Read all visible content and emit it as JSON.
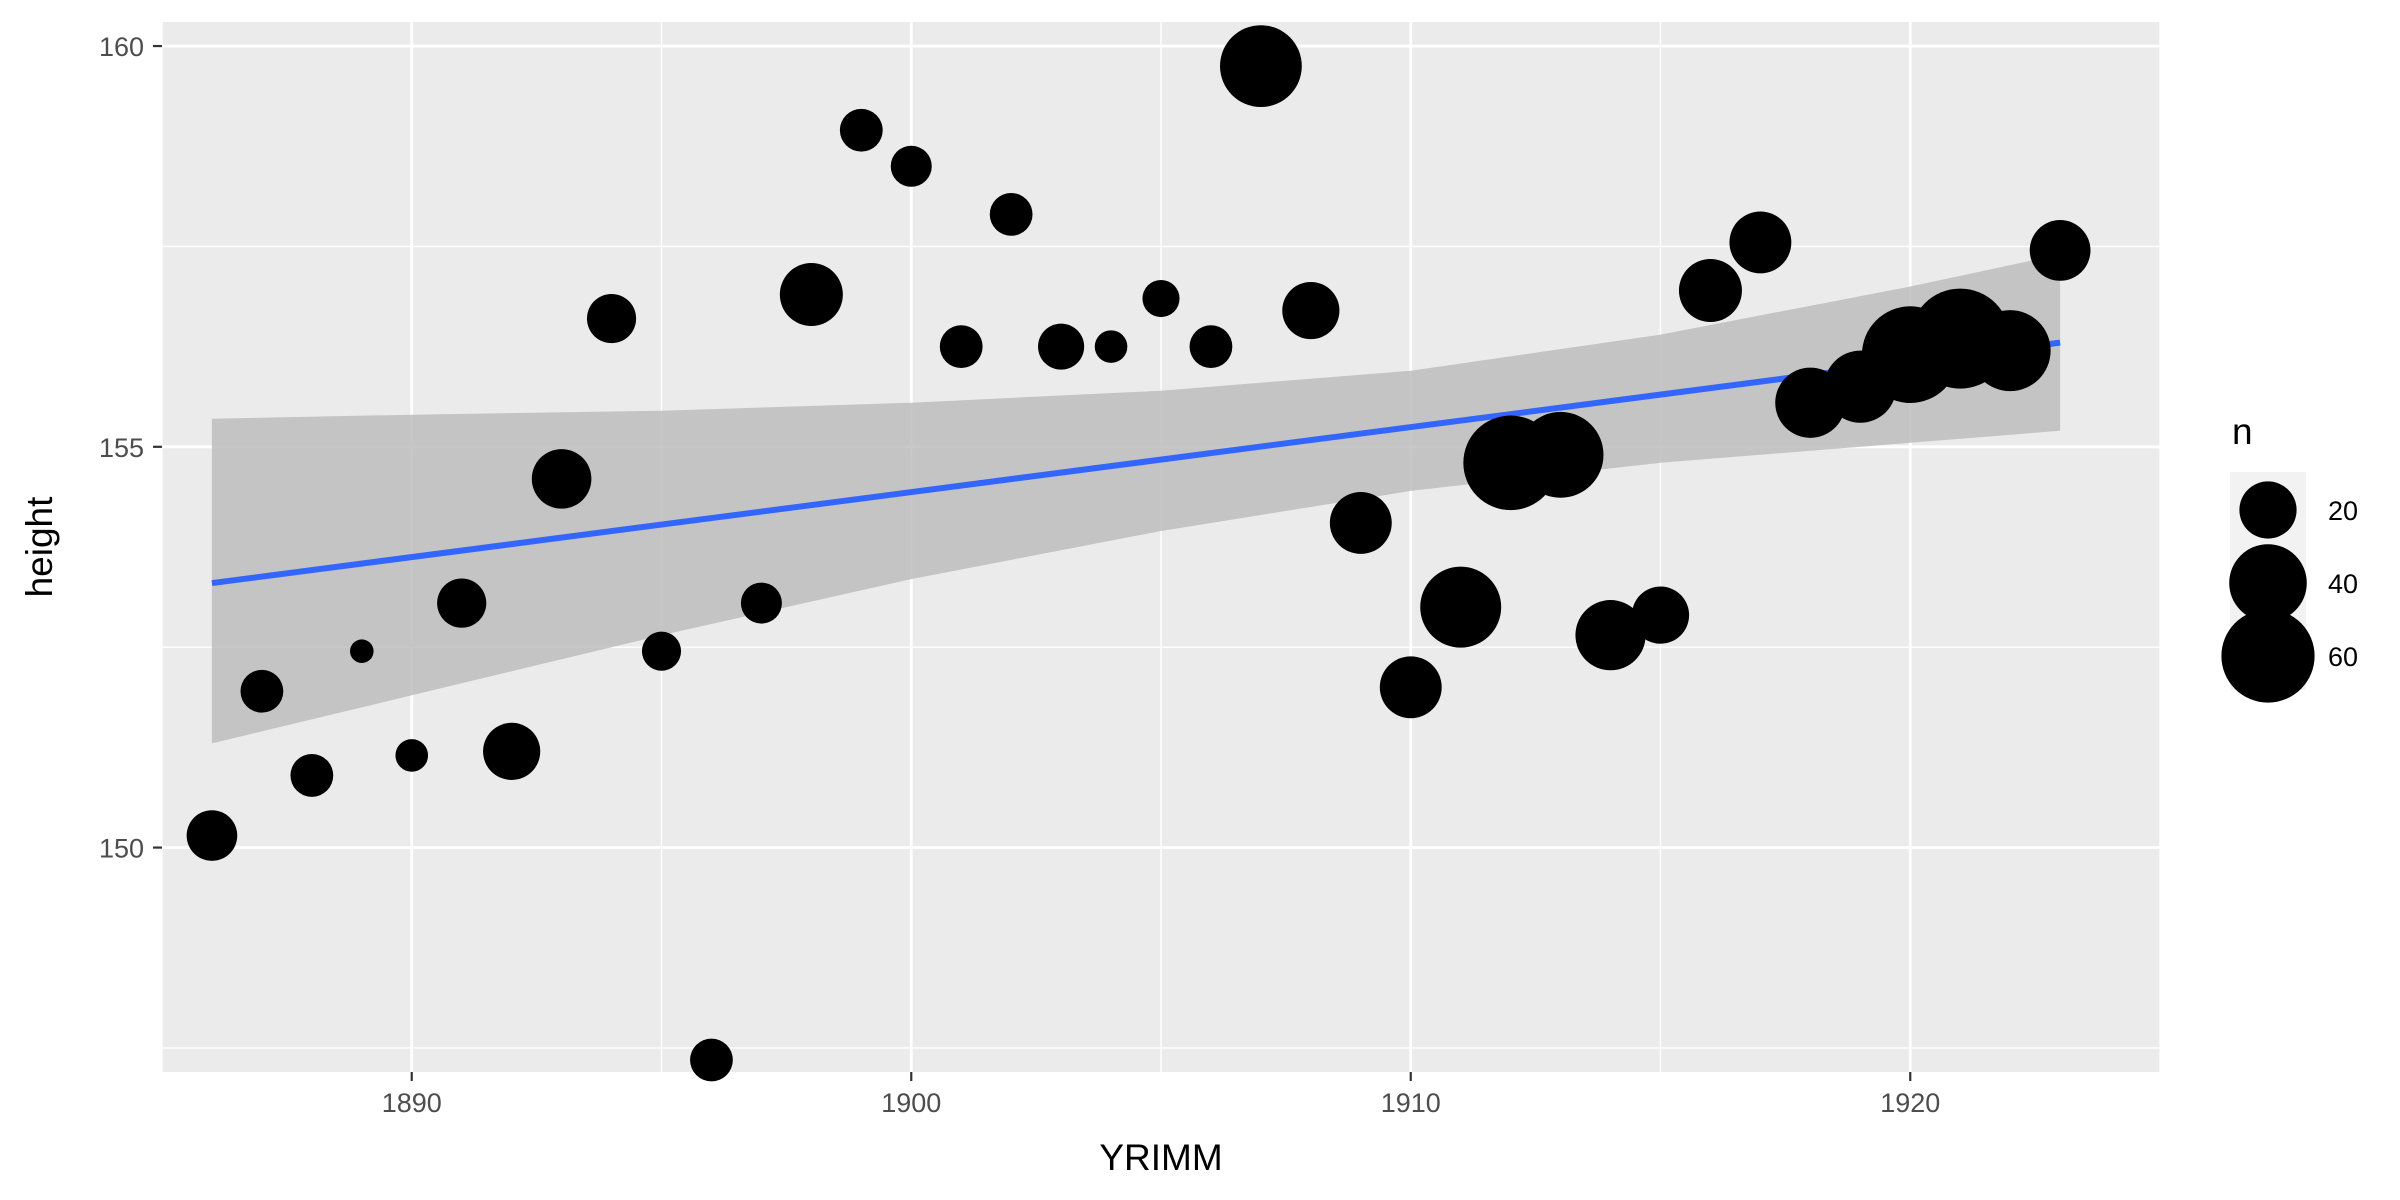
{
  "chart_data": {
    "type": "scatter",
    "xlabel": "YRIMM",
    "ylabel": "height",
    "xlim": [
      1885,
      1925
    ],
    "ylim": [
      147.2,
      160.3
    ],
    "x_ticks": [
      1890,
      1900,
      1910,
      1920
    ],
    "y_ticks": [
      150,
      155,
      160
    ],
    "x_tick_labels": [
      "1890",
      "1900",
      "1910",
      "1920"
    ],
    "y_tick_labels": [
      "150",
      "155",
      "160"
    ],
    "grid": true,
    "background": "#ebebeb",
    "point_color": "#000000",
    "points": [
      {
        "x": 1886,
        "y": 150.15,
        "n": 15
      },
      {
        "x": 1887,
        "y": 151.95,
        "n": 10
      },
      {
        "x": 1888,
        "y": 150.9,
        "n": 10
      },
      {
        "x": 1889,
        "y": 152.45,
        "n": 2
      },
      {
        "x": 1890,
        "y": 151.15,
        "n": 5
      },
      {
        "x": 1891,
        "y": 153.05,
        "n": 14
      },
      {
        "x": 1892,
        "y": 151.2,
        "n": 20
      },
      {
        "x": 1893,
        "y": 154.6,
        "n": 22
      },
      {
        "x": 1894,
        "y": 156.6,
        "n": 14
      },
      {
        "x": 1895,
        "y": 152.45,
        "n": 8
      },
      {
        "x": 1896,
        "y": 147.35,
        "n": 10
      },
      {
        "x": 1897,
        "y": 153.05,
        "n": 9
      },
      {
        "x": 1898,
        "y": 156.9,
        "n": 25
      },
      {
        "x": 1899,
        "y": 158.95,
        "n": 10
      },
      {
        "x": 1900,
        "y": 158.5,
        "n": 9
      },
      {
        "x": 1901,
        "y": 156.25,
        "n": 10
      },
      {
        "x": 1902,
        "y": 157.9,
        "n": 10
      },
      {
        "x": 1903,
        "y": 156.25,
        "n": 12
      },
      {
        "x": 1904,
        "y": 156.25,
        "n": 5
      },
      {
        "x": 1905,
        "y": 156.85,
        "n": 7
      },
      {
        "x": 1906,
        "y": 156.25,
        "n": 10
      },
      {
        "x": 1907,
        "y": 159.75,
        "n": 45
      },
      {
        "x": 1908,
        "y": 156.7,
        "n": 20
      },
      {
        "x": 1909,
        "y": 154.05,
        "n": 24
      },
      {
        "x": 1910,
        "y": 152.0,
        "n": 24
      },
      {
        "x": 1911,
        "y": 153.0,
        "n": 44
      },
      {
        "x": 1912,
        "y": 154.8,
        "n": 62
      },
      {
        "x": 1913,
        "y": 154.9,
        "n": 50
      },
      {
        "x": 1914,
        "y": 152.65,
        "n": 32
      },
      {
        "x": 1915,
        "y": 152.9,
        "n": 20
      },
      {
        "x": 1916,
        "y": 156.95,
        "n": 25
      },
      {
        "x": 1917,
        "y": 157.55,
        "n": 24
      },
      {
        "x": 1918,
        "y": 155.55,
        "n": 32
      },
      {
        "x": 1919,
        "y": 155.75,
        "n": 34
      },
      {
        "x": 1920,
        "y": 156.15,
        "n": 65
      },
      {
        "x": 1921,
        "y": 156.35,
        "n": 70
      },
      {
        "x": 1922,
        "y": 156.2,
        "n": 44
      },
      {
        "x": 1923,
        "y": 157.45,
        "n": 23
      }
    ],
    "smooth": {
      "method": "linear",
      "color": "#3366ff",
      "ribbon_color": "#bdbdbd",
      "fit": [
        {
          "x": 1886,
          "y": 153.3
        },
        {
          "x": 1923,
          "y": 156.3
        }
      ],
      "ribbon": [
        {
          "x": 1886,
          "lower": 151.3,
          "upper": 155.35
        },
        {
          "x": 1890,
          "lower": 151.9,
          "upper": 155.4
        },
        {
          "x": 1895,
          "lower": 152.65,
          "upper": 155.45
        },
        {
          "x": 1900,
          "lower": 153.35,
          "upper": 155.55
        },
        {
          "x": 1905,
          "lower": 153.95,
          "upper": 155.7
        },
        {
          "x": 1910,
          "lower": 154.45,
          "upper": 155.95
        },
        {
          "x": 1915,
          "lower": 154.8,
          "upper": 156.4
        },
        {
          "x": 1920,
          "lower": 155.05,
          "upper": 157.0
        },
        {
          "x": 1923,
          "lower": 155.2,
          "upper": 157.4
        }
      ]
    },
    "legend": {
      "title": "n",
      "position": "right",
      "entries": [
        {
          "label": "20",
          "n": 20
        },
        {
          "label": "40",
          "n": 40
        },
        {
          "label": "60",
          "n": 60
        }
      ]
    }
  }
}
